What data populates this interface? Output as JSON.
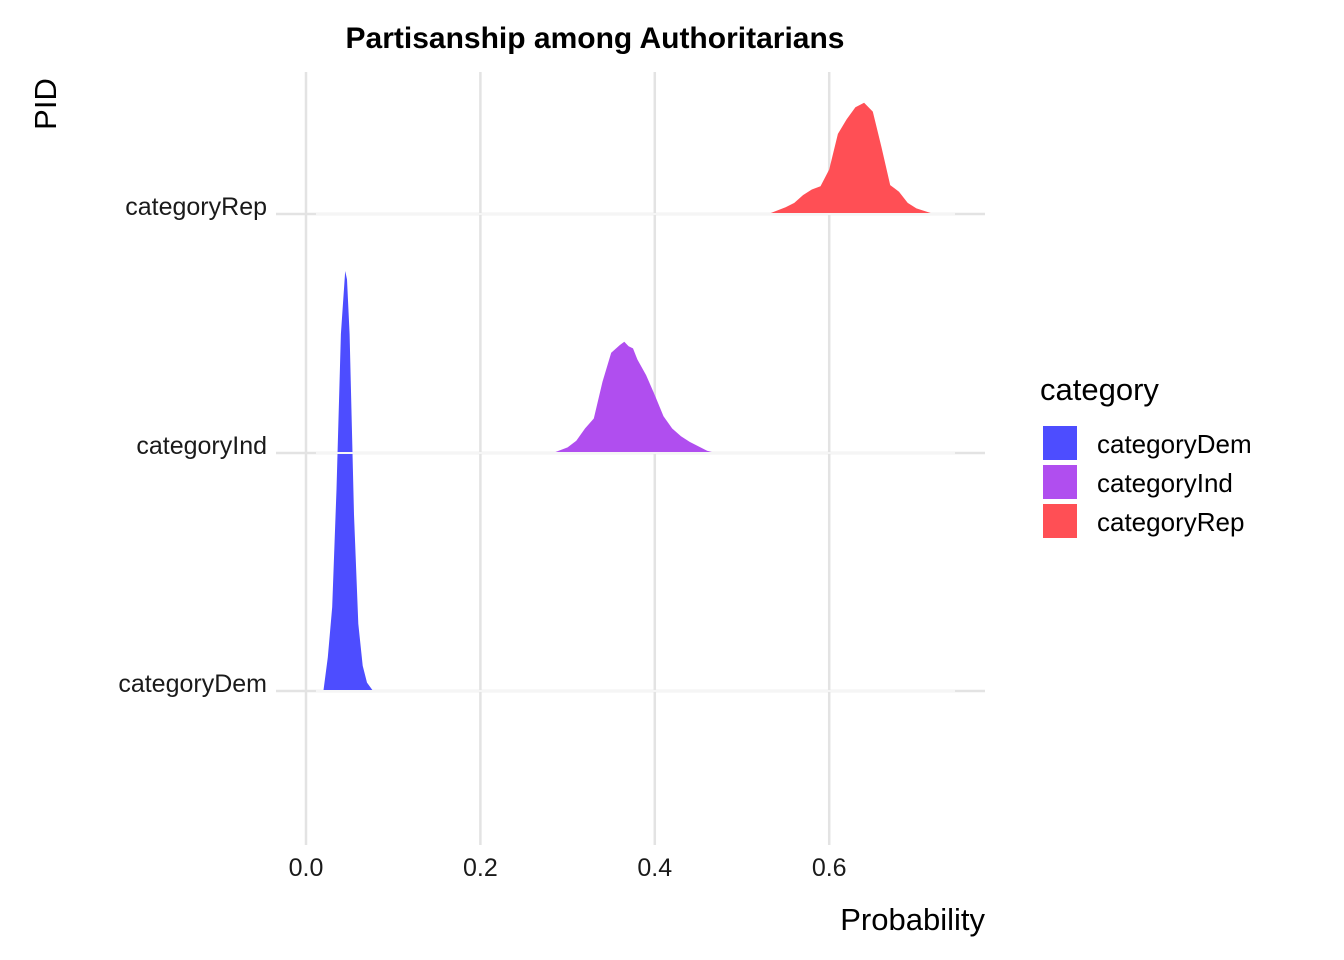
{
  "chart_data": {
    "type": "area",
    "subtype": "ridgeline-density",
    "title": "Partisanship among Authoritarians",
    "xlabel": "Probability",
    "ylabel": "PID",
    "xlim": [
      0.0,
      0.78
    ],
    "x_ticks": [
      "0.0",
      "0.2",
      "0.4",
      "0.6"
    ],
    "x_tick_values": [
      0.0,
      0.2,
      0.4,
      0.6
    ],
    "grid": true,
    "legend": {
      "title": "category",
      "placement": "right",
      "entries": [
        "categoryDem",
        "categoryInd",
        "categoryRep"
      ]
    },
    "categories": [
      "categoryDem",
      "categoryInd",
      "categoryRep"
    ],
    "series": [
      {
        "name": "categoryDem",
        "color": "#4d4dff",
        "x": [
          0.02,
          0.025,
          0.03,
          0.035,
          0.04,
          0.045,
          0.047,
          0.05,
          0.055,
          0.06,
          0.065,
          0.07,
          0.077
        ],
        "density": [
          0.0,
          0.08,
          0.2,
          0.48,
          0.85,
          1.0,
          0.98,
          0.85,
          0.42,
          0.16,
          0.06,
          0.02,
          0.0
        ]
      },
      {
        "name": "categoryInd",
        "color": "#b04eef",
        "x": [
          0.283,
          0.3,
          0.31,
          0.32,
          0.33,
          0.34,
          0.35,
          0.36,
          0.365,
          0.37,
          0.375,
          0.38,
          0.39,
          0.4,
          0.41,
          0.42,
          0.43,
          0.44,
          0.46,
          0.47
        ],
        "density": [
          0.0,
          0.05,
          0.11,
          0.22,
          0.31,
          0.64,
          0.9,
          0.97,
          1.0,
          0.96,
          0.94,
          0.84,
          0.7,
          0.52,
          0.33,
          0.22,
          0.15,
          0.1,
          0.02,
          0.0
        ]
      },
      {
        "name": "categoryRep",
        "color": "#ff4f55",
        "x": [
          0.53,
          0.55,
          0.56,
          0.57,
          0.58,
          0.59,
          0.6,
          0.61,
          0.62,
          0.63,
          0.64,
          0.65,
          0.66,
          0.67,
          0.675,
          0.68,
          0.69,
          0.7,
          0.72
        ],
        "density": [
          0.0,
          0.06,
          0.1,
          0.17,
          0.22,
          0.25,
          0.4,
          0.72,
          0.85,
          0.96,
          1.0,
          0.92,
          0.6,
          0.26,
          0.23,
          0.2,
          0.1,
          0.05,
          0.0
        ]
      }
    ],
    "y_tick_labels": [
      "categoryDem",
      "categoryInd",
      "categoryRep"
    ]
  }
}
